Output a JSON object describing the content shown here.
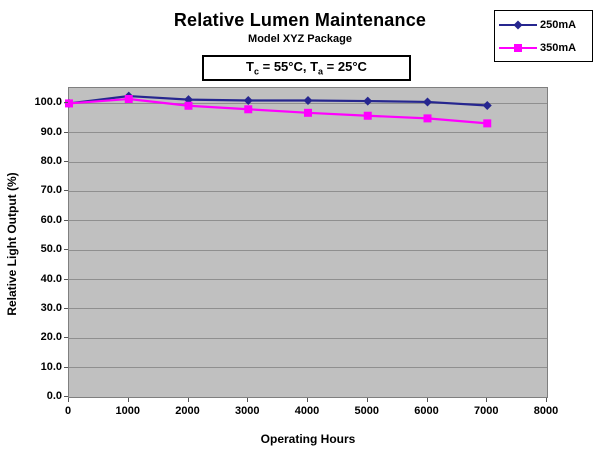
{
  "title": "Relative Lumen Maintenance",
  "subtitle": "Model XYZ Package",
  "annotation": {
    "t1": "T",
    "sub1": "c",
    "mid": " = 55°C, T",
    "sub2": "a",
    "end": " = 25°C"
  },
  "legend": {
    "items": [
      {
        "label": "250mA",
        "color": "#26268F",
        "marker": "diamond"
      },
      {
        "label": "350mA",
        "color": "#FF00FF",
        "marker": "square"
      }
    ]
  },
  "chart_data": {
    "type": "line",
    "title": "Relative Lumen Maintenance",
    "subtitle": "Model XYZ Package",
    "annotation_text": "Tc = 55°C, Ta = 25°C",
    "xlabel": "Operating Hours",
    "ylabel": "Relative Light Output (%)",
    "x": [
      0,
      1000,
      2000,
      3000,
      4000,
      5000,
      6000,
      7000
    ],
    "series": [
      {
        "name": "250mA",
        "color": "#26268F",
        "marker": "diamond",
        "values": [
          100.0,
          102.5,
          101.3,
          101.0,
          101.0,
          100.8,
          100.5,
          99.3
        ]
      },
      {
        "name": "350mA",
        "color": "#FF00FF",
        "marker": "square",
        "values": [
          100.0,
          101.5,
          99.2,
          98.0,
          96.8,
          95.8,
          94.9,
          93.2
        ]
      }
    ],
    "xlim": [
      0,
      8000
    ],
    "ylim": [
      0,
      105.25
    ],
    "xticks": [
      0,
      1000,
      2000,
      3000,
      4000,
      5000,
      6000,
      7000,
      8000
    ],
    "yticks": [
      0,
      10,
      20,
      30,
      40,
      50,
      60,
      70,
      80,
      90,
      100
    ],
    "ytick_decimals": 1,
    "grid": "horizontal",
    "legend_position": "top-right",
    "plot_bg": "#C0C0C0",
    "gridline_color": "#8F8F8F"
  }
}
